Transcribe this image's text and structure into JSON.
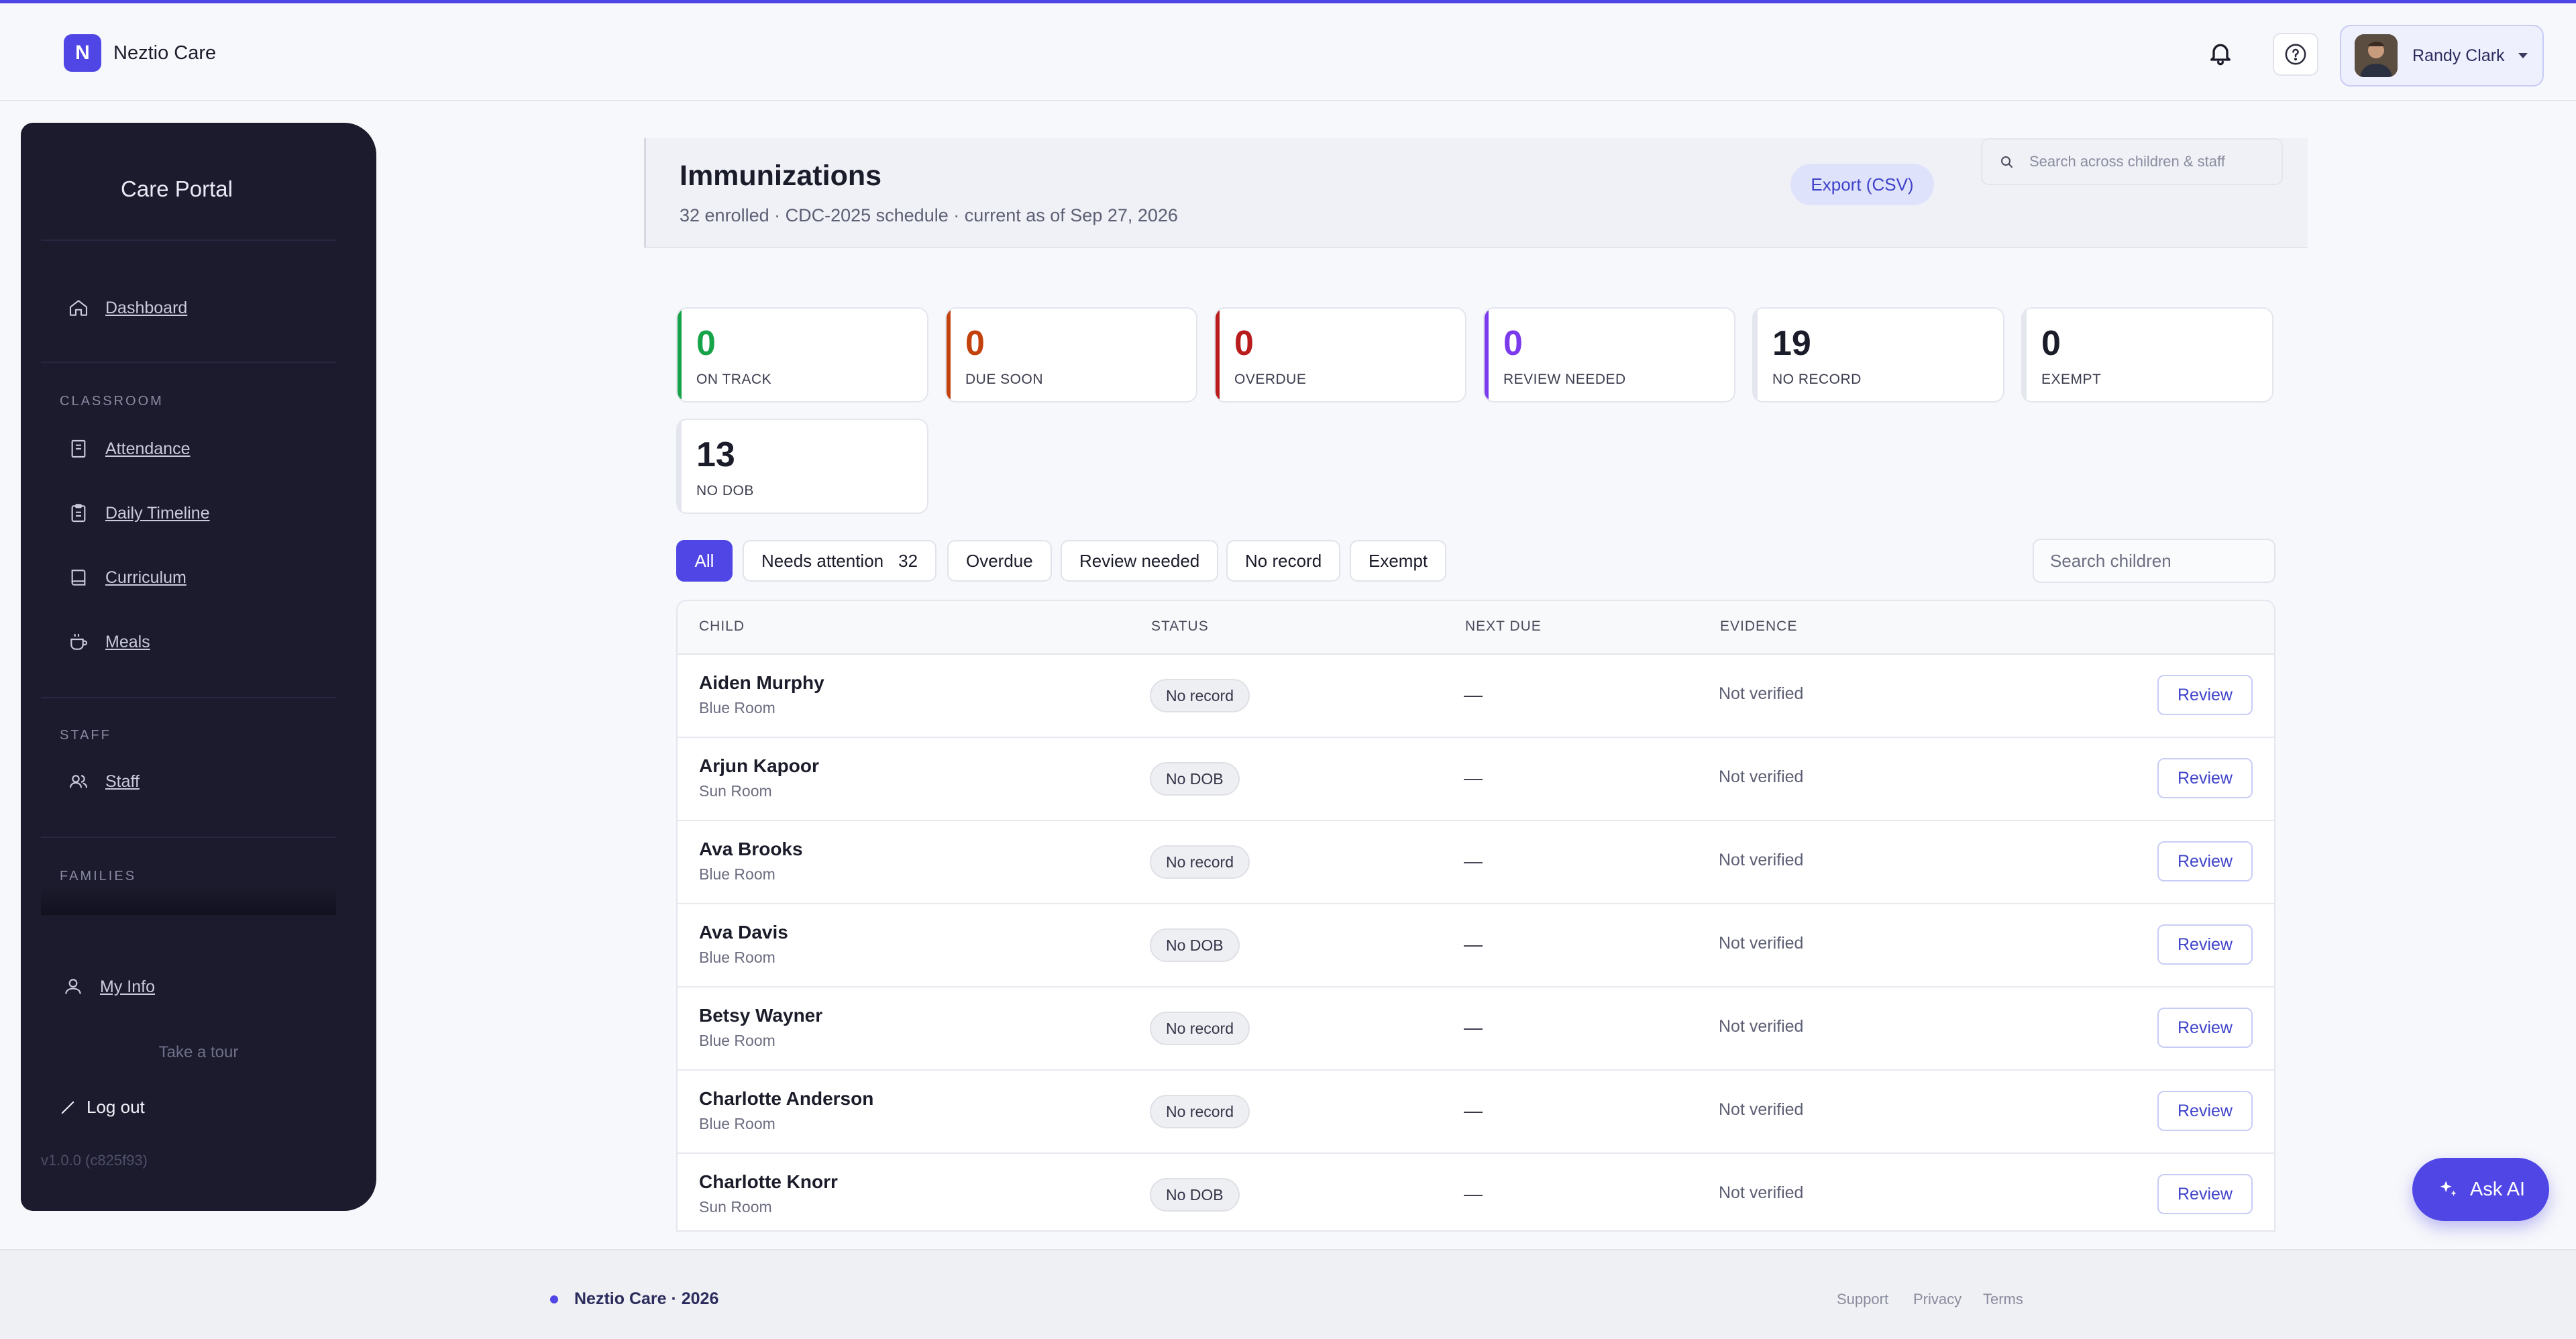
{
  "brand": {
    "logo_letter": "N",
    "name": "Neztio Care"
  },
  "header": {
    "user_name": "Randy Clark"
  },
  "sidebar": {
    "title": "Care Portal",
    "dashboard": "Dashboard",
    "classroom_label": "CLASSROOM",
    "classroom_items": [
      "Attendance",
      "Daily Timeline",
      "Curriculum",
      "Meals"
    ],
    "staff_label": "STAFF",
    "staff_item": "Staff",
    "families_label": "FAMILIES",
    "my_info": "My Info",
    "take_tour": "Take a tour",
    "logout": "Log out",
    "version": "v1.0.0 (c825f93)"
  },
  "page": {
    "title": "Immunizations",
    "subtitle": "32 enrolled · CDC-2025 schedule · current as of Sep 27, 2026",
    "export_label": "Export (CSV)",
    "global_search_placeholder": "Search across children & staff"
  },
  "stats": [
    {
      "value": "0",
      "label": "ON TRACK",
      "color": "#16a34a"
    },
    {
      "value": "0",
      "label": "DUE SOON",
      "color": "#c2410c"
    },
    {
      "value": "0",
      "label": "OVERDUE",
      "color": "#b91c1c"
    },
    {
      "value": "0",
      "label": "REVIEW NEEDED",
      "color": "#7c3aed"
    },
    {
      "value": "19",
      "label": "NO RECORD",
      "color": "#1b1c2a"
    },
    {
      "value": "0",
      "label": "EXEMPT",
      "color": "#1b1c2a"
    },
    {
      "value": "13",
      "label": "NO DOB",
      "color": "#1b1c2a"
    }
  ],
  "filters": {
    "all": "All",
    "needs_attention": "Needs attention",
    "needs_attention_count": "32",
    "overdue": "Overdue",
    "review_needed": "Review needed",
    "no_record": "No record",
    "exempt": "Exempt",
    "search_placeholder": "Search children"
  },
  "table": {
    "headers": {
      "child": "CHILD",
      "status": "STATUS",
      "next_due": "NEXT DUE",
      "evidence": "EVIDENCE"
    },
    "rows": [
      {
        "name": "Aiden Murphy",
        "room": "Blue Room",
        "status": "No record",
        "next_due": "—",
        "evidence": "Not verified",
        "action": "Review"
      },
      {
        "name": "Arjun Kapoor",
        "room": "Sun Room",
        "status": "No DOB",
        "next_due": "—",
        "evidence": "Not verified",
        "action": "Review"
      },
      {
        "name": "Ava Brooks",
        "room": "Blue Room",
        "status": "No record",
        "next_due": "—",
        "evidence": "Not verified",
        "action": "Review"
      },
      {
        "name": "Ava Davis",
        "room": "Blue Room",
        "status": "No DOB",
        "next_due": "—",
        "evidence": "Not verified",
        "action": "Review"
      },
      {
        "name": "Betsy Wayner",
        "room": "Blue Room",
        "status": "No record",
        "next_due": "—",
        "evidence": "Not verified",
        "action": "Review"
      },
      {
        "name": "Charlotte Anderson",
        "room": "Blue Room",
        "status": "No record",
        "next_due": "—",
        "evidence": "Not verified",
        "action": "Review"
      },
      {
        "name": "Charlotte Knorr",
        "room": "Sun Room",
        "status": "No DOB",
        "next_due": "—",
        "evidence": "Not verified",
        "action": "Review"
      }
    ]
  },
  "footer": {
    "brand": "Neztio Care · 2026",
    "support": "Support",
    "privacy": "Privacy",
    "terms": "Terms"
  },
  "ask_ai": "Ask AI",
  "colors": {
    "accent": "#4f46e5",
    "sidebar_bg": "#1b1b2d"
  }
}
